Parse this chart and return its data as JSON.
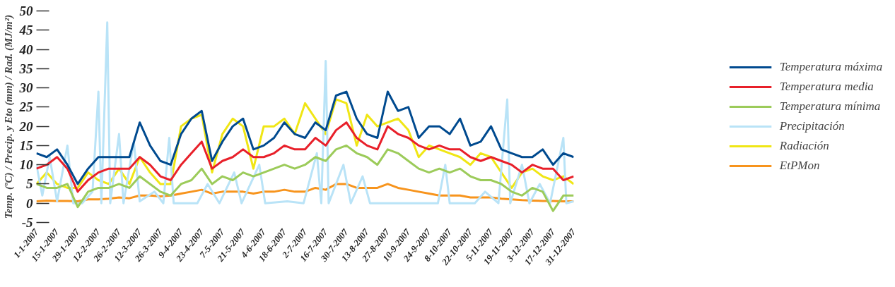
{
  "chart_data": {
    "type": "line",
    "ylabel": "Temp. (ºC) / Precip. y Eto (mm) / Rad. (MJ/m²)",
    "x": [
      "2007-01-01",
      "2007-01-08",
      "2007-01-15",
      "2007-01-22",
      "2007-01-29",
      "2007-02-05",
      "2007-02-12",
      "2007-02-19",
      "2007-02-26",
      "2007-03-05",
      "2007-03-12",
      "2007-03-19",
      "2007-03-26",
      "2007-04-02",
      "2007-04-09",
      "2007-04-16",
      "2007-04-23",
      "2007-04-30",
      "2007-05-07",
      "2007-05-14",
      "2007-05-21",
      "2007-05-28",
      "2007-06-04",
      "2007-06-11",
      "2007-06-18",
      "2007-06-25",
      "2007-07-02",
      "2007-07-09",
      "2007-07-16",
      "2007-07-23",
      "2007-07-30",
      "2007-08-06",
      "2007-08-13",
      "2007-08-20",
      "2007-08-27",
      "2007-09-03",
      "2007-09-10",
      "2007-09-17",
      "2007-09-24",
      "2007-10-01",
      "2007-10-08",
      "2007-10-15",
      "2007-10-22",
      "2007-10-29",
      "2007-11-05",
      "2007-11-12",
      "2007-11-19",
      "2007-11-26",
      "2007-12-03",
      "2007-12-10",
      "2007-12-17",
      "2007-12-24",
      "2007-12-31"
    ],
    "series": [
      {
        "name": "Temperatura máxima",
        "color": "#004a8f",
        "values": [
          13,
          12,
          14,
          10,
          5,
          9,
          12,
          12,
          12,
          12,
          21,
          15,
          11,
          10,
          18,
          22,
          24,
          11,
          16,
          20,
          22,
          14,
          15,
          17,
          21,
          18,
          17,
          21,
          19,
          28,
          29,
          22,
          18,
          17,
          29,
          24,
          25,
          17,
          20,
          20,
          18,
          22,
          15,
          16,
          20,
          14,
          13,
          12,
          12,
          14,
          10,
          13,
          12
        ]
      },
      {
        "name": "Temperatura media",
        "color": "#e8202a",
        "values": [
          9,
          10,
          12,
          9,
          3,
          6,
          8,
          9,
          9,
          9,
          12,
          10,
          7,
          6,
          10,
          13,
          16,
          9,
          11,
          12,
          14,
          12,
          12,
          13,
          15,
          14,
          14,
          17,
          15,
          19,
          21,
          17,
          15,
          14,
          20,
          18,
          17,
          15,
          14,
          15,
          14,
          14,
          12,
          11,
          12,
          11,
          10,
          8,
          10,
          9,
          9,
          6,
          7
        ]
      },
      {
        "name": "Temperatura mínima",
        "color": "#9ccb5a",
        "values": [
          5,
          4,
          4,
          5,
          -1,
          3,
          4,
          4,
          5,
          4,
          7,
          5,
          3,
          2,
          5,
          6,
          9,
          5,
          7,
          6,
          8,
          7,
          8,
          9,
          10,
          9,
          10,
          12,
          11,
          14,
          15,
          13,
          12,
          10,
          14,
          13,
          11,
          9,
          8,
          9,
          8,
          9,
          7,
          6,
          6,
          5,
          3,
          2,
          4,
          3,
          -2,
          2,
          2
        ]
      },
      {
        "name": "Precipitación",
        "color": "#b9e3f7",
        "x": [
          "2007-01-01",
          "2007-01-05",
          "2007-01-10",
          "2007-01-15",
          "2007-01-22",
          "2007-01-26",
          "2007-02-01",
          "2007-02-08",
          "2007-02-12",
          "2007-02-14",
          "2007-02-18",
          "2007-02-20",
          "2007-02-26",
          "2007-03-01",
          "2007-03-08",
          "2007-03-12",
          "2007-03-22",
          "2007-03-28",
          "2007-04-01",
          "2007-04-04",
          "2007-04-20",
          "2007-04-27",
          "2007-05-05",
          "2007-05-15",
          "2007-05-20",
          "2007-06-01",
          "2007-06-05",
          "2007-06-20",
          "2007-07-01",
          "2007-07-10",
          "2007-07-13",
          "2007-07-16",
          "2007-07-18",
          "2007-07-28",
          "2007-08-02",
          "2007-08-10",
          "2007-08-15",
          "2007-09-30",
          "2007-10-05",
          "2007-10-08",
          "2007-10-25",
          "2007-11-01",
          "2007-11-10",
          "2007-11-16",
          "2007-11-18",
          "2007-11-26",
          "2007-12-01",
          "2007-12-08",
          "2007-12-15",
          "2007-12-24",
          "2007-12-26",
          "2007-12-31"
        ],
        "values": [
          10,
          2,
          12,
          0.5,
          15,
          0,
          0,
          3,
          29,
          0,
          47,
          0,
          18,
          0,
          16,
          0.5,
          3,
          0,
          17,
          0,
          0,
          5,
          0,
          8,
          0,
          10,
          0,
          0.5,
          0,
          13,
          0,
          37,
          0,
          10,
          0,
          7,
          0,
          0,
          10,
          0,
          0,
          3,
          0,
          27,
          0,
          10,
          0,
          5,
          0,
          17,
          0,
          0.5
        ]
      },
      {
        "name": "Radiación",
        "color": "#f0e615",
        "values": [
          5,
          8,
          5,
          4,
          4,
          8,
          6,
          5,
          9,
          5,
          12,
          8,
          5,
          5,
          20,
          22,
          23,
          8,
          18,
          22,
          20,
          9,
          20,
          20,
          22,
          18,
          26,
          22,
          18,
          27,
          26,
          15,
          23,
          20,
          21,
          22,
          19,
          12,
          15,
          14,
          13,
          12,
          10,
          13,
          12,
          8,
          4,
          8,
          9,
          7,
          6,
          7,
          5
        ]
      },
      {
        "name": "EtPMon",
        "color": "#f7941d",
        "values": [
          0.5,
          0.7,
          0.6,
          0.6,
          0.5,
          1,
          1,
          1.2,
          1.5,
          1.3,
          2,
          2,
          1.8,
          2,
          2.5,
          3,
          3.5,
          2.5,
          3,
          3,
          3,
          2.5,
          3,
          3,
          3.5,
          3,
          3,
          4,
          3.5,
          5,
          5,
          4,
          4,
          4,
          5,
          4,
          3.5,
          3,
          2.5,
          2,
          2,
          2,
          1.5,
          1.5,
          1.5,
          1.2,
          1,
          0.8,
          0.7,
          0.6,
          0.6,
          0.5,
          0.5
        ]
      }
    ],
    "xlim": [
      "2007-01-01",
      "2007-12-31"
    ],
    "xticks": [
      {
        "value": "2007-01-01",
        "label": "1-1-2007"
      },
      {
        "value": "2007-01-15",
        "label": "15-1-2007"
      },
      {
        "value": "2007-01-29",
        "label": "29-1-2007"
      },
      {
        "value": "2007-02-12",
        "label": "12-2-2007"
      },
      {
        "value": "2007-02-26",
        "label": "26-2-2007"
      },
      {
        "value": "2007-03-12",
        "label": "12-3-2007"
      },
      {
        "value": "2007-03-26",
        "label": "26-3-2007"
      },
      {
        "value": "2007-04-09",
        "label": "9-4-2007"
      },
      {
        "value": "2007-04-23",
        "label": "23-4-2007"
      },
      {
        "value": "2007-05-07",
        "label": "7-5-2007"
      },
      {
        "value": "2007-05-21",
        "label": "21-5-2007"
      },
      {
        "value": "2007-06-04",
        "label": "4-6-2007"
      },
      {
        "value": "2007-06-18",
        "label": "18-6-2007"
      },
      {
        "value": "2007-07-02",
        "label": "2-7-2007"
      },
      {
        "value": "2007-07-16",
        "label": "16-7-2007"
      },
      {
        "value": "2007-07-30",
        "label": "30-7-2007"
      },
      {
        "value": "2007-08-13",
        "label": "13-8-2007"
      },
      {
        "value": "2007-08-27",
        "label": "27-8-2007"
      },
      {
        "value": "2007-09-10",
        "label": "10-9-2007"
      },
      {
        "value": "2007-09-24",
        "label": "24-9-2007"
      },
      {
        "value": "2007-10-08",
        "label": "8-10-2007"
      },
      {
        "value": "2007-10-22",
        "label": "22-10-2007"
      },
      {
        "value": "2007-11-05",
        "label": "5-11-2007"
      },
      {
        "value": "2007-11-19",
        "label": "19-11-2007"
      },
      {
        "value": "2007-12-03",
        "label": "3-12-2007"
      },
      {
        "value": "2007-12-17",
        "label": "17-12-2007"
      },
      {
        "value": "2007-12-31",
        "label": "31-12-2007"
      }
    ],
    "ylim": [
      -5,
      50
    ],
    "yticks": [
      -5,
      0,
      5,
      10,
      15,
      20,
      25,
      30,
      35,
      40,
      45,
      50
    ],
    "grid": false,
    "legend": "right",
    "marker": "none",
    "line_style": "solid"
  }
}
